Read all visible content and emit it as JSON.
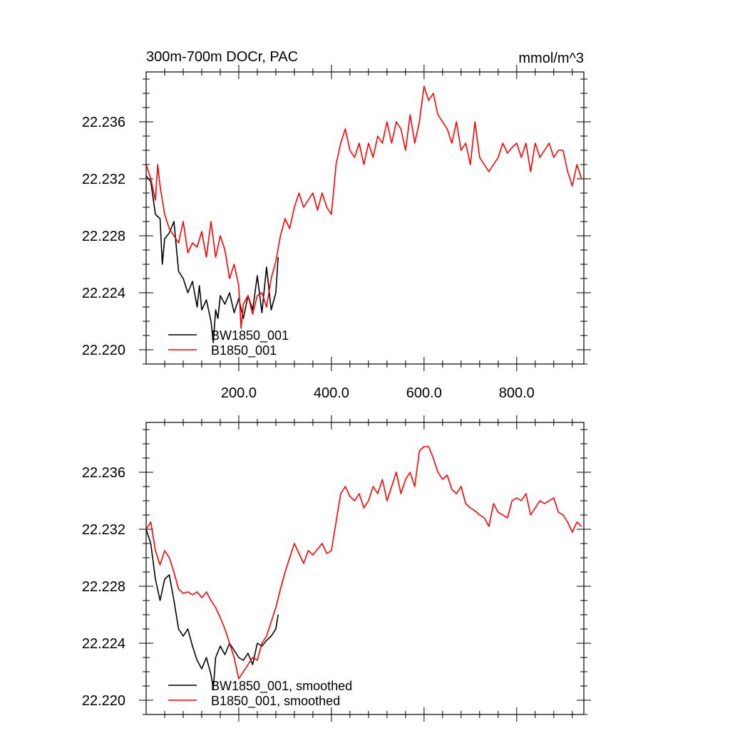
{
  "chart_data": [
    {
      "type": "line",
      "title": "300m-700m DOCr, PAC",
      "units": "mmol/m^3",
      "xlim": [
        0,
        945
      ],
      "ylim": [
        22.219,
        22.2395
      ],
      "x_ticks": [
        200,
        400,
        600,
        800
      ],
      "x_tick_labels": [
        "200.0",
        "400.0",
        "600.0",
        "800.0"
      ],
      "y_ticks": [
        22.22,
        22.224,
        22.228,
        22.232,
        22.236
      ],
      "y_tick_labels": [
        "22.220",
        "22.224",
        "22.228",
        "22.232",
        "22.236"
      ],
      "legend_position": "bottom-left",
      "series": [
        {
          "name": "BW1850_001",
          "color": "#000000",
          "x": [
            0,
            10,
            20,
            30,
            35,
            40,
            50,
            60,
            70,
            80,
            90,
            100,
            110,
            115,
            120,
            130,
            140,
            145,
            150,
            155,
            160,
            170,
            180,
            190,
            200,
            210,
            220,
            230,
            240,
            250,
            260,
            270,
            280,
            285
          ],
          "y": [
            22.2322,
            22.2318,
            22.2295,
            22.2292,
            22.226,
            22.2278,
            22.2282,
            22.229,
            22.2255,
            22.225,
            22.224,
            22.2248,
            22.223,
            22.2245,
            22.2228,
            22.2235,
            22.222,
            22.2205,
            22.2228,
            22.2222,
            22.2238,
            22.2232,
            22.224,
            22.2226,
            22.2236,
            22.2222,
            22.2238,
            22.2228,
            22.2252,
            22.2226,
            22.2258,
            22.2228,
            22.224,
            22.2265
          ]
        },
        {
          "name": "B1850_001",
          "color": "#ff0000",
          "x": [
            0,
            10,
            20,
            25,
            30,
            40,
            50,
            60,
            70,
            80,
            90,
            100,
            110,
            120,
            130,
            140,
            150,
            160,
            170,
            180,
            190,
            200,
            205,
            210,
            220,
            230,
            240,
            250,
            260,
            270,
            280,
            290,
            300,
            310,
            320,
            330,
            340,
            350,
            360,
            370,
            380,
            390,
            400,
            410,
            420,
            430,
            440,
            450,
            460,
            470,
            480,
            490,
            500,
            510,
            520,
            530,
            540,
            550,
            560,
            570,
            580,
            590,
            600,
            610,
            620,
            630,
            640,
            650,
            660,
            670,
            680,
            690,
            700,
            710,
            720,
            730,
            740,
            750,
            760,
            770,
            780,
            790,
            800,
            810,
            820,
            830,
            840,
            850,
            860,
            870,
            880,
            890,
            900,
            910,
            920,
            930,
            940
          ],
          "y": [
            22.233,
            22.232,
            22.2305,
            22.233,
            22.2315,
            22.2295,
            22.2285,
            22.228,
            22.2275,
            22.229,
            22.2268,
            22.2275,
            22.2272,
            22.2283,
            22.2265,
            22.229,
            22.2265,
            22.228,
            22.227,
            22.225,
            22.226,
            22.2245,
            22.2215,
            22.2232,
            22.2238,
            22.2225,
            22.2238,
            22.224,
            22.223,
            22.225,
            22.2262,
            22.228,
            22.2292,
            22.2285,
            22.23,
            22.231,
            22.23,
            22.2305,
            22.231,
            22.2298,
            22.231,
            22.23,
            22.2295,
            22.233,
            22.2345,
            22.2355,
            22.234,
            22.2335,
            22.2345,
            22.233,
            22.2345,
            22.2335,
            22.235,
            22.2345,
            22.236,
            22.2345,
            22.236,
            22.2355,
            22.234,
            22.2365,
            22.2345,
            22.236,
            22.2385,
            22.2375,
            22.238,
            22.2365,
            22.236,
            22.2355,
            22.2345,
            22.236,
            22.234,
            22.2345,
            22.233,
            22.236,
            22.2335,
            22.233,
            22.2325,
            22.233,
            22.2335,
            22.2345,
            22.2338,
            22.2342,
            22.2345,
            22.2335,
            22.2345,
            22.2325,
            22.2345,
            22.2335,
            22.234,
            22.2345,
            22.2335,
            22.234,
            22.234,
            22.2325,
            22.2315,
            22.233,
            22.232
          ]
        }
      ]
    },
    {
      "type": "line",
      "xlim": [
        0,
        945
      ],
      "ylim": [
        22.219,
        22.2395
      ],
      "y_ticks": [
        22.22,
        22.224,
        22.228,
        22.232,
        22.236
      ],
      "y_tick_labels": [
        "22.220",
        "22.224",
        "22.228",
        "22.232",
        "22.236"
      ],
      "legend_position": "bottom-left",
      "series": [
        {
          "name": "BW1850_001, smoothed",
          "color": "#000000",
          "x": [
            0,
            10,
            20,
            30,
            40,
            50,
            60,
            70,
            80,
            90,
            100,
            110,
            120,
            130,
            140,
            145,
            150,
            160,
            170,
            180,
            190,
            200,
            210,
            220,
            230,
            240,
            250,
            260,
            270,
            280,
            285
          ],
          "y": [
            22.232,
            22.231,
            22.2285,
            22.227,
            22.2285,
            22.2288,
            22.227,
            22.225,
            22.2245,
            22.225,
            22.2238,
            22.2228,
            22.2222,
            22.223,
            22.2218,
            22.2208,
            22.223,
            22.2238,
            22.2232,
            22.224,
            22.2235,
            22.223,
            22.2228,
            22.2233,
            22.2225,
            22.224,
            22.2238,
            22.2242,
            22.2245,
            22.225,
            22.226
          ]
        },
        {
          "name": "B1850_001, smoothed",
          "color": "#ff0000",
          "x": [
            0,
            10,
            20,
            30,
            40,
            50,
            60,
            70,
            80,
            90,
            100,
            110,
            120,
            130,
            140,
            150,
            160,
            170,
            180,
            190,
            200,
            210,
            220,
            230,
            240,
            250,
            260,
            270,
            280,
            290,
            300,
            310,
            320,
            330,
            340,
            350,
            360,
            370,
            380,
            390,
            400,
            410,
            420,
            430,
            440,
            450,
            460,
            470,
            480,
            490,
            500,
            510,
            520,
            530,
            540,
            550,
            560,
            570,
            580,
            590,
            600,
            610,
            620,
            630,
            640,
            650,
            660,
            670,
            680,
            690,
            700,
            710,
            720,
            730,
            740,
            750,
            760,
            770,
            780,
            790,
            800,
            810,
            820,
            830,
            840,
            850,
            860,
            870,
            880,
            890,
            900,
            910,
            920,
            930,
            940
          ],
          "y": [
            22.232,
            22.2325,
            22.2305,
            22.2295,
            22.2305,
            22.23,
            22.229,
            22.2278,
            22.2275,
            22.2276,
            22.2274,
            22.2276,
            22.2272,
            22.2276,
            22.227,
            22.2265,
            22.2258,
            22.225,
            22.224,
            22.223,
            22.2215,
            22.222,
            22.2225,
            22.223,
            22.2228,
            22.224,
            22.2245,
            22.2255,
            22.2265,
            22.2278,
            22.229,
            22.23,
            22.231,
            22.2303,
            22.2296,
            22.2305,
            22.2302,
            22.2306,
            22.231,
            22.2303,
            22.2305,
            22.2325,
            22.2345,
            22.235,
            22.2343,
            22.234,
            22.2345,
            22.2335,
            22.234,
            22.235,
            22.2345,
            22.2355,
            22.234,
            22.235,
            22.236,
            22.2345,
            22.2355,
            22.236,
            22.235,
            22.2375,
            22.2378,
            22.2378,
            22.237,
            22.236,
            22.2355,
            22.2358,
            22.2348,
            22.2345,
            22.235,
            22.2338,
            22.2335,
            22.2333,
            22.233,
            22.2328,
            22.2322,
            22.2338,
            22.2332,
            22.233,
            22.2328,
            22.234,
            22.2342,
            22.234,
            22.2345,
            22.233,
            22.2335,
            22.234,
            22.2338,
            22.234,
            22.2342,
            22.2332,
            22.233,
            22.2325,
            22.2318,
            22.2325,
            22.2322
          ]
        }
      ]
    }
  ]
}
